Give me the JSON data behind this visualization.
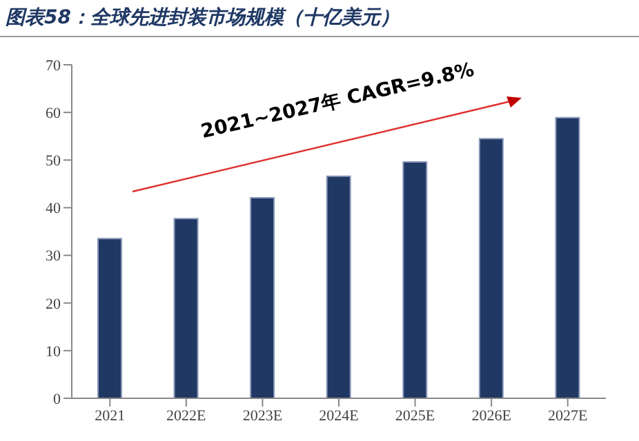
{
  "chart_data": {
    "type": "bar",
    "title": "图表58：全球先进封装市场规模（十亿美元）",
    "categories": [
      "2021",
      "2022E",
      "2023E",
      "2024E",
      "2025E",
      "2026E",
      "2027E"
    ],
    "values": [
      33.5,
      37.7,
      42.1,
      46.6,
      49.6,
      54.5,
      58.9
    ],
    "color": "#203864",
    "ylim": [
      0,
      70
    ],
    "yticks": [
      0,
      10,
      20,
      30,
      40,
      50,
      60,
      70
    ],
    "grid": false,
    "legend": false,
    "annotations": [
      "2021~2027年 CAGR=9.8%"
    ]
  }
}
